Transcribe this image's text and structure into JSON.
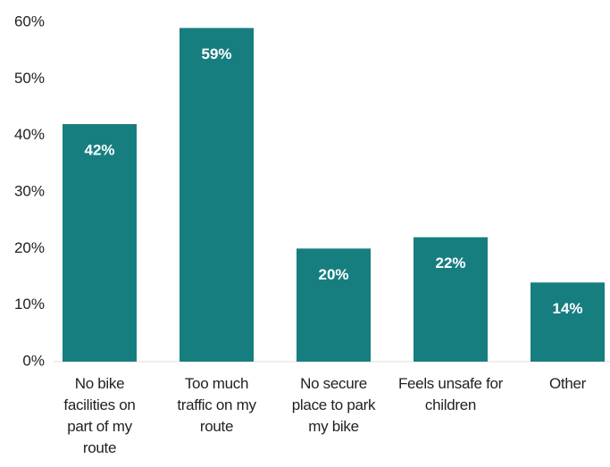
{
  "chart_data": {
    "type": "bar",
    "categories": [
      "No bike facilities on part of my route",
      "Too much traffic on my route",
      "No secure place to park my bike",
      "Feels unsafe for children",
      "Other"
    ],
    "values": [
      42,
      59,
      20,
      22,
      14
    ],
    "value_labels": [
      "42%",
      "59%",
      "20%",
      "22%",
      "14%"
    ],
    "color": "#177e80",
    "ylim": [
      0,
      60
    ],
    "yticks": [
      {
        "value": 0,
        "label": "0%"
      },
      {
        "value": 10,
        "label": "10%"
      },
      {
        "value": 20,
        "label": "20%"
      },
      {
        "value": 30,
        "label": "30%"
      },
      {
        "value": 40,
        "label": "40%"
      },
      {
        "value": 50,
        "label": "50%"
      },
      {
        "value": 60,
        "label": "60%"
      }
    ],
    "grid": false
  }
}
